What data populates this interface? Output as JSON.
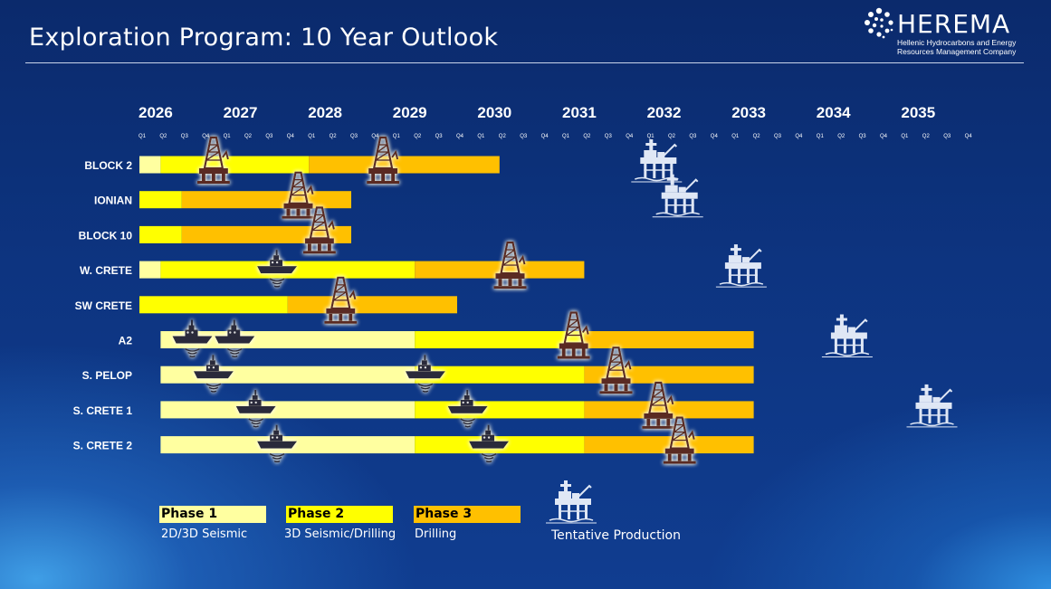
{
  "header": {
    "title": "Exploration Program: 10 Year Outlook",
    "logo_name": "HEREMA",
    "logo_subtitle_line1": "Hellenic Hydrocarbons and Energy",
    "logo_subtitle_line2": "Resources Management Company"
  },
  "colors": {
    "phase1": "#ffffa0",
    "phase2": "#ffff00",
    "phase3": "#ffc000",
    "background": "#0d3480",
    "production_icon": "#dfe7f5",
    "rig_icon": "#5a2a22"
  },
  "timeline": {
    "years": [
      "2026",
      "2027",
      "2028",
      "2029",
      "2030",
      "2031",
      "2032",
      "2033",
      "2034",
      "2035"
    ],
    "quarters": [
      "Q1",
      "Q2",
      "Q3",
      "Q4"
    ]
  },
  "chart_data": {
    "type": "gantt",
    "time_unit": "quarter",
    "start": "2026-Q1",
    "rows": [
      {
        "label": "BLOCK 2",
        "segments": [
          {
            "phase": "Phase 1",
            "start": "2026-Q1",
            "end": "2026-Q1"
          },
          {
            "phase": "Phase 2",
            "start": "2026-Q2",
            "end": "2027-Q4"
          },
          {
            "phase": "Phase 3",
            "start": "2028-Q1",
            "end": "2030-Q1"
          }
        ],
        "events": [
          {
            "type": "drilling-rig",
            "at": "2026-Q4"
          },
          {
            "type": "drilling-rig",
            "at": "2028-Q4"
          }
        ],
        "production": "2032-Q1"
      },
      {
        "label": "IONIAN",
        "segments": [
          {
            "phase": "Phase 2",
            "start": "2026-Q1",
            "end": "2026-Q2"
          },
          {
            "phase": "Phase 3",
            "start": "2026-Q3",
            "end": "2028-Q2"
          }
        ],
        "events": [
          {
            "type": "drilling-rig",
            "at": "2027-Q4"
          }
        ],
        "production": "2032-Q2"
      },
      {
        "label": "BLOCK 10",
        "segments": [
          {
            "phase": "Phase 2",
            "start": "2026-Q1",
            "end": "2026-Q2"
          },
          {
            "phase": "Phase 3",
            "start": "2026-Q3",
            "end": "2028-Q2"
          }
        ],
        "events": [
          {
            "type": "drilling-rig",
            "at": "2028-Q1"
          }
        ]
      },
      {
        "label": "W. CRETE",
        "segments": [
          {
            "phase": "Phase 1",
            "start": "2026-Q1",
            "end": "2026-Q1"
          },
          {
            "phase": "Phase 2",
            "start": "2026-Q2",
            "end": "2029-Q1"
          },
          {
            "phase": "Phase 3",
            "start": "2029-Q2",
            "end": "2031-Q1"
          }
        ],
        "events": [
          {
            "type": "seismic-vessel",
            "at": "2027-Q3"
          },
          {
            "type": "drilling-rig",
            "at": "2030-Q2"
          }
        ],
        "production": "2033-Q1"
      },
      {
        "label": "SW CRETE",
        "segments": [
          {
            "phase": "Phase 2",
            "start": "2026-Q1",
            "end": "2027-Q3"
          },
          {
            "phase": "Phase 3",
            "start": "2027-Q4",
            "end": "2029-Q3"
          }
        ],
        "events": [
          {
            "type": "drilling-rig",
            "at": "2028-Q2"
          }
        ]
      },
      {
        "label": "A2",
        "segments": [
          {
            "phase": "Phase 1",
            "start": "2026-Q2",
            "end": "2029-Q1"
          },
          {
            "phase": "Phase 2",
            "start": "2029-Q2",
            "end": "2031-Q1"
          },
          {
            "phase": "Phase 3",
            "start": "2031-Q2",
            "end": "2033-Q1"
          }
        ],
        "events": [
          {
            "type": "seismic-vessel",
            "at": "2026-Q3"
          },
          {
            "type": "seismic-vessel",
            "at": "2027-Q1"
          },
          {
            "type": "drilling-rig",
            "at": "2031-Q1"
          }
        ],
        "production": "2034-Q2"
      },
      {
        "label": "S. PELOP",
        "segments": [
          {
            "phase": "Phase 1",
            "start": "2026-Q2",
            "end": "2029-Q1"
          },
          {
            "phase": "Phase 2",
            "start": "2029-Q2",
            "end": "2031-Q1"
          },
          {
            "phase": "Phase 3",
            "start": "2031-Q2",
            "end": "2033-Q1"
          }
        ],
        "events": [
          {
            "type": "seismic-vessel",
            "at": "2026-Q4"
          },
          {
            "type": "seismic-vessel",
            "at": "2029-Q2"
          },
          {
            "type": "drilling-rig",
            "at": "2031-Q3"
          }
        ]
      },
      {
        "label": "S. CRETE 1",
        "segments": [
          {
            "phase": "Phase 1",
            "start": "2026-Q2",
            "end": "2029-Q1"
          },
          {
            "phase": "Phase 2",
            "start": "2029-Q2",
            "end": "2031-Q1"
          },
          {
            "phase": "Phase 3",
            "start": "2031-Q2",
            "end": "2033-Q1"
          }
        ],
        "events": [
          {
            "type": "seismic-vessel",
            "at": "2027-Q2"
          },
          {
            "type": "seismic-vessel",
            "at": "2029-Q4"
          },
          {
            "type": "drilling-rig",
            "at": "2032-Q1"
          }
        ],
        "production": "2035-Q2"
      },
      {
        "label": "S. CRETE 2",
        "segments": [
          {
            "phase": "Phase 1",
            "start": "2026-Q2",
            "end": "2029-Q1"
          },
          {
            "phase": "Phase 2",
            "start": "2029-Q2",
            "end": "2031-Q1"
          },
          {
            "phase": "Phase 3",
            "start": "2031-Q2",
            "end": "2033-Q1"
          }
        ],
        "events": [
          {
            "type": "seismic-vessel",
            "at": "2027-Q3"
          },
          {
            "type": "seismic-vessel",
            "at": "2030-Q1"
          },
          {
            "type": "drilling-rig",
            "at": "2032-Q2"
          }
        ]
      }
    ]
  },
  "legend": [
    {
      "label": "Phase 1",
      "desc": "2D/3D Seismic",
      "color": "#ffffa0"
    },
    {
      "label": "Phase 2",
      "desc": "3D Seismic/Drilling",
      "color": "#ffff00"
    },
    {
      "label": "Phase 3",
      "desc": "Drilling",
      "color": "#ffc000"
    }
  ],
  "legend_production_label": "Tentative Production"
}
